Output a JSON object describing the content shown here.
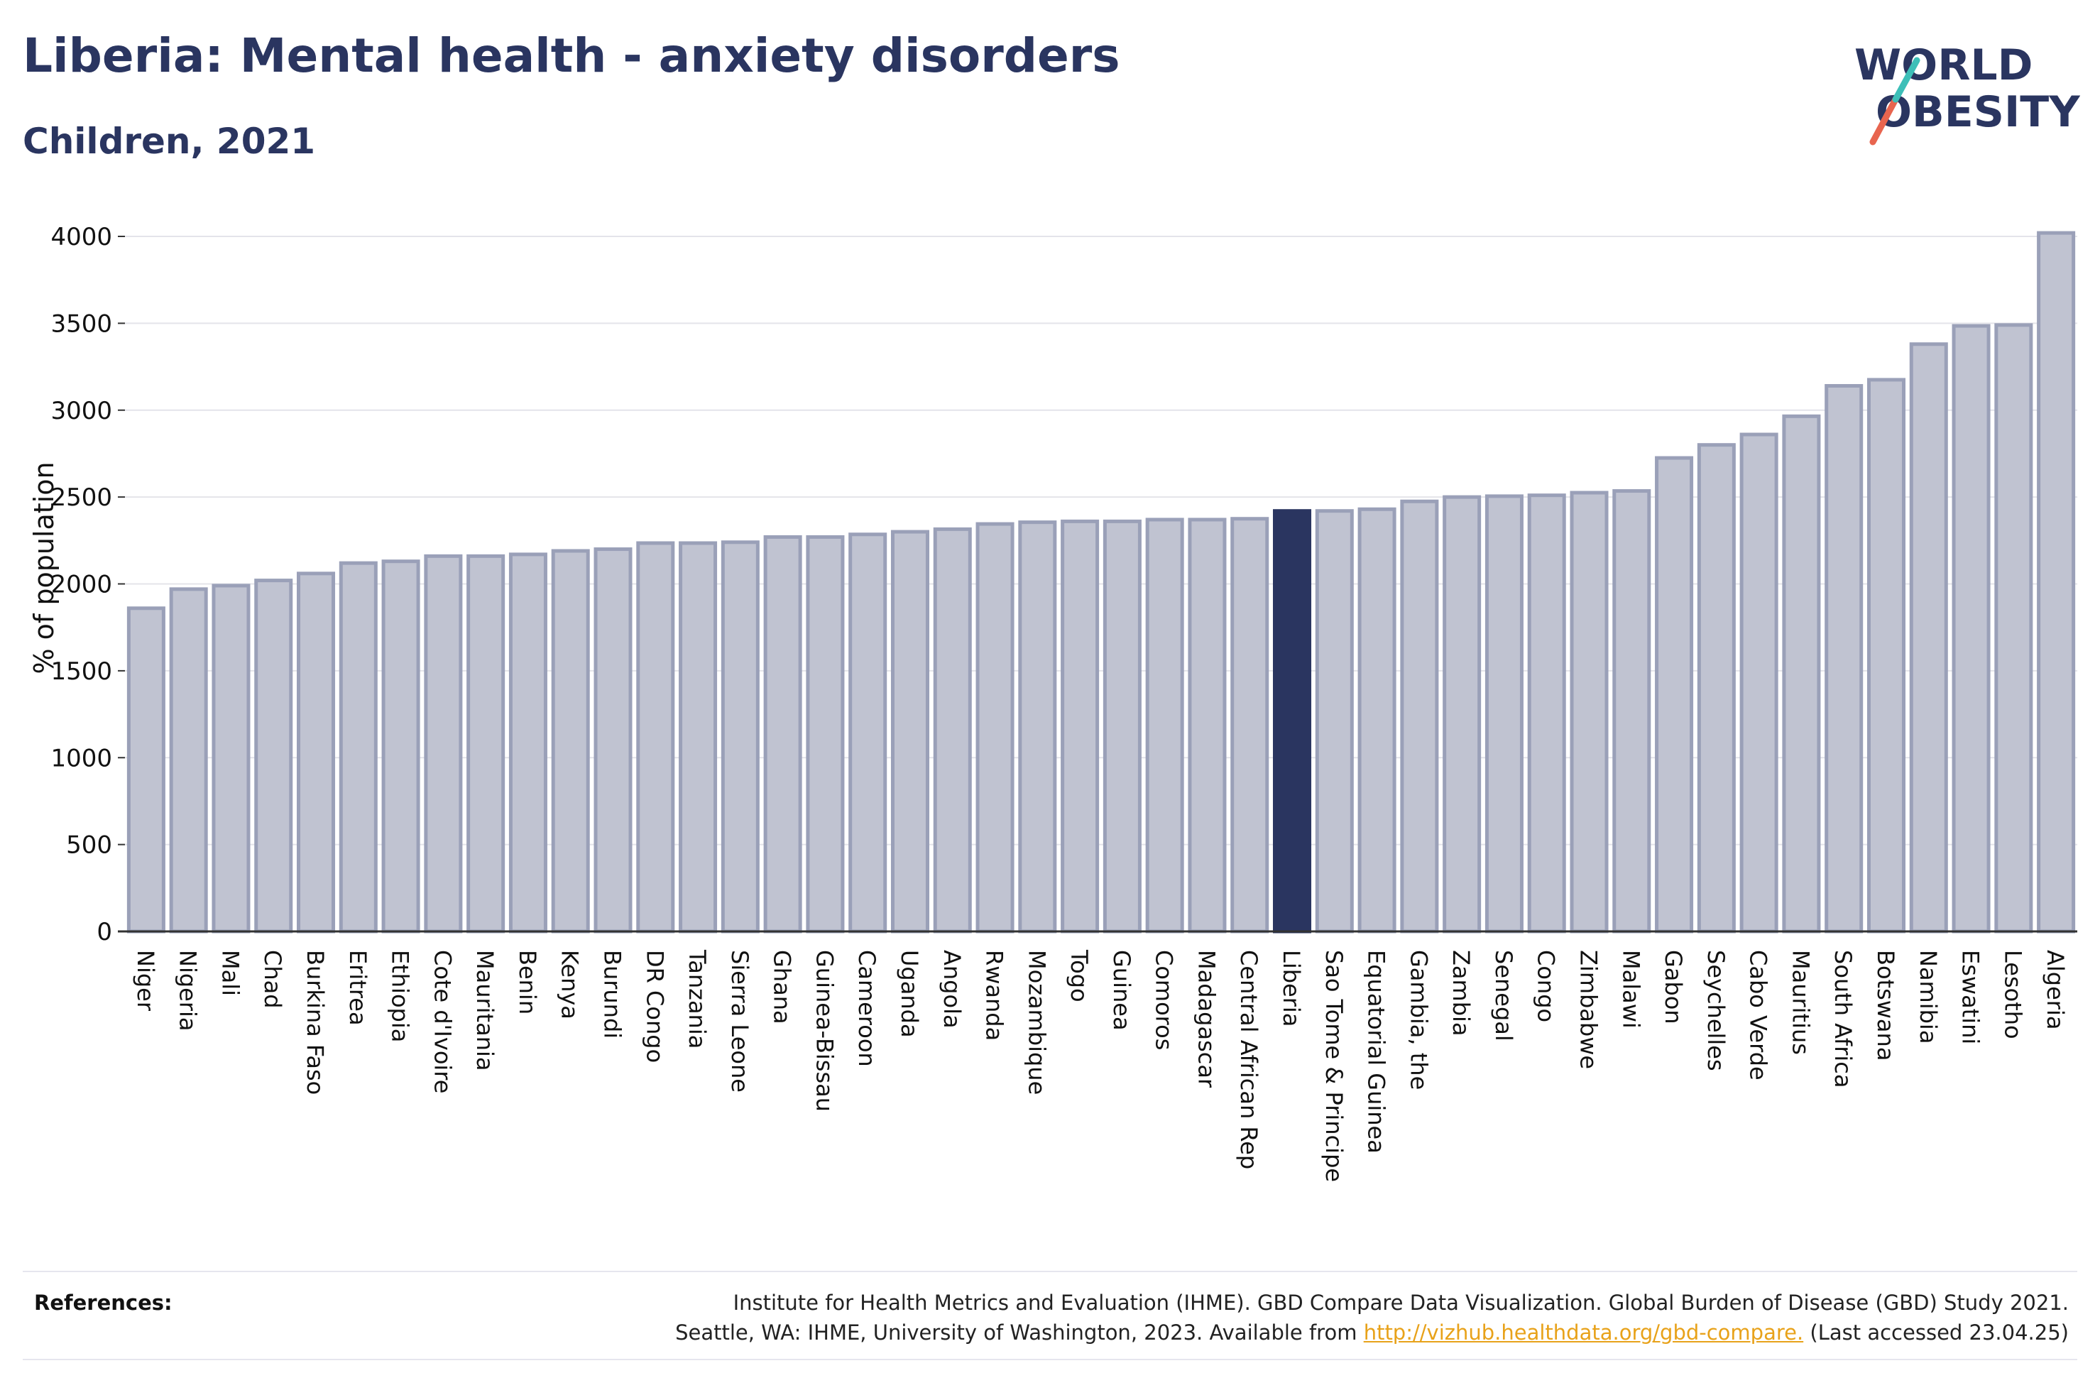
{
  "header": {
    "title": "Liberia: Mental health - anxiety disorders",
    "subtitle": "Children, 2021"
  },
  "logo": {
    "line1": "WORLD",
    "line2": "OBESITY"
  },
  "colors": {
    "highlight": "#2a3560",
    "bar": "#c0c3d1",
    "bar_edge": "#9aa0b8",
    "accent_red": "#e8654f",
    "accent_teal": "#3dbfb8",
    "link": "#e8a21a"
  },
  "chart_data": {
    "type": "bar",
    "ylabel": "% of population",
    "ylim": [
      0,
      4000
    ],
    "yticks": [
      0,
      500,
      1000,
      1500,
      2000,
      2500,
      3000,
      3500,
      4000
    ],
    "highlight": "Liberia",
    "grid": true,
    "categories": [
      "Niger",
      "Nigeria",
      "Mali",
      "Chad",
      "Burkina Faso",
      "Eritrea",
      "Ethiopia",
      "Cote d'Ivoire",
      "Mauritania",
      "Benin",
      "Kenya",
      "Burundi",
      "DR Congo",
      "Tanzania",
      "Sierra Leone",
      "Ghana",
      "Guinea-Bissau",
      "Cameroon",
      "Uganda",
      "Angola",
      "Rwanda",
      "Mozambique",
      "Togo",
      "Guinea",
      "Comoros",
      "Madagascar",
      "Central African Rep",
      "Liberia",
      "Sao Tome & Principe",
      "Equatorial Guinea",
      "Gambia, the",
      "Zambia",
      "Senegal",
      "Congo",
      "Zimbabwe",
      "Malawi",
      "Gabon",
      "Seychelles",
      "Cabo Verde",
      "Mauritius",
      "South Africa",
      "Botswana",
      "Namibia",
      "Eswatini",
      "Lesotho",
      "Algeria"
    ],
    "values": [
      1860,
      1970,
      1990,
      2020,
      2060,
      2120,
      2130,
      2160,
      2160,
      2170,
      2190,
      2200,
      2235,
      2235,
      2240,
      2270,
      2270,
      2285,
      2300,
      2315,
      2345,
      2355,
      2360,
      2360,
      2370,
      2370,
      2375,
      2420,
      2420,
      2430,
      2475,
      2500,
      2505,
      2510,
      2525,
      2535,
      2725,
      2800,
      2860,
      2965,
      3140,
      3175,
      3380,
      3485,
      3490,
      4020
    ]
  },
  "references": {
    "label": "References:",
    "line1": "Institute for Health Metrics and Evaluation (IHME). GBD Compare Data Visualization. Global Burden of Disease (GBD) Study 2021.",
    "line2_pre": "Seattle, WA: IHME, University of Washington, 2023. Available from ",
    "link": "http://vizhub.healthdata.org/gbd-compare.",
    "line2_post": " (Last accessed 23.04.25)"
  }
}
